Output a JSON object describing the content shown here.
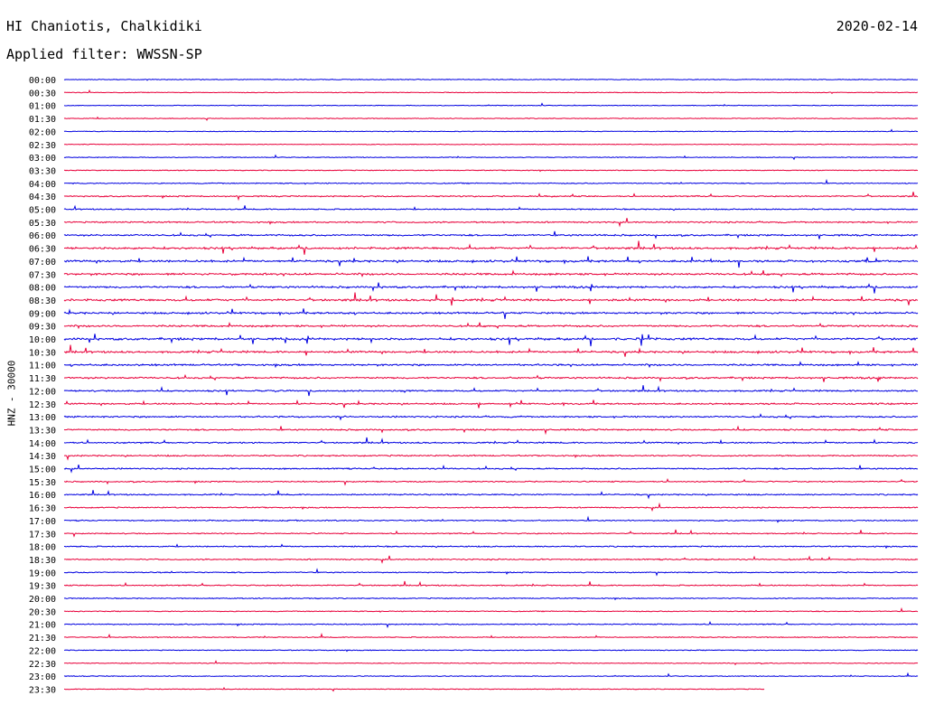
{
  "header": {
    "station": "HI Chaniotis, Chalkidiki",
    "date": "2020-02-14",
    "filter": "Applied filter: WWSSN-SP"
  },
  "colors": {
    "even": "#0000e0",
    "odd": "#e8003a"
  },
  "chart_data": {
    "type": "line",
    "ylabel": "HNZ - 30000",
    "rows": [
      {
        "label": "00:00",
        "activity": 0.1
      },
      {
        "label": "00:30",
        "activity": 0.05
      },
      {
        "label": "01:00",
        "activity": 0.05
      },
      {
        "label": "01:30",
        "activity": 0.05
      },
      {
        "label": "02:00",
        "activity": 0.04
      },
      {
        "label": "02:30",
        "activity": 0.06
      },
      {
        "label": "03:00",
        "activity": 0.08
      },
      {
        "label": "03:30",
        "activity": 0.08
      },
      {
        "label": "04:00",
        "activity": 0.22
      },
      {
        "label": "04:30",
        "activity": 0.35
      },
      {
        "label": "05:00",
        "activity": 0.3
      },
      {
        "label": "05:30",
        "activity": 0.45
      },
      {
        "label": "06:00",
        "activity": 0.55
      },
      {
        "label": "06:30",
        "activity": 0.75
      },
      {
        "label": "07:00",
        "activity": 0.75
      },
      {
        "label": "07:30",
        "activity": 0.7
      },
      {
        "label": "08:00",
        "activity": 0.7
      },
      {
        "label": "08:30",
        "activity": 0.8
      },
      {
        "label": "09:00",
        "activity": 0.65
      },
      {
        "label": "09:30",
        "activity": 0.65
      },
      {
        "label": "10:00",
        "activity": 0.85
      },
      {
        "label": "10:30",
        "activity": 0.7
      },
      {
        "label": "11:00",
        "activity": 0.6
      },
      {
        "label": "11:30",
        "activity": 0.6
      },
      {
        "label": "12:00",
        "activity": 0.5
      },
      {
        "label": "12:30",
        "activity": 0.5
      },
      {
        "label": "13:00",
        "activity": 0.5
      },
      {
        "label": "13:30",
        "activity": 0.45
      },
      {
        "label": "14:00",
        "activity": 0.45
      },
      {
        "label": "14:30",
        "activity": 0.4
      },
      {
        "label": "15:00",
        "activity": 0.4
      },
      {
        "label": "15:30",
        "activity": 0.3
      },
      {
        "label": "16:00",
        "activity": 0.35
      },
      {
        "label": "16:30",
        "activity": 0.3
      },
      {
        "label": "17:00",
        "activity": 0.3
      },
      {
        "label": "17:30",
        "activity": 0.25
      },
      {
        "label": "18:00",
        "activity": 0.3
      },
      {
        "label": "18:30",
        "activity": 0.35
      },
      {
        "label": "19:00",
        "activity": 0.25
      },
      {
        "label": "19:30",
        "activity": 0.3
      },
      {
        "label": "20:00",
        "activity": 0.2
      },
      {
        "label": "20:30",
        "activity": 0.15
      },
      {
        "label": "21:00",
        "activity": 0.25
      },
      {
        "label": "21:30",
        "activity": 0.15
      },
      {
        "label": "22:00",
        "activity": 0.1
      },
      {
        "label": "22:30",
        "activity": 0.1
      },
      {
        "label": "23:00",
        "activity": 0.1
      },
      {
        "label": "23:30",
        "activity": 0.08
      }
    ]
  }
}
